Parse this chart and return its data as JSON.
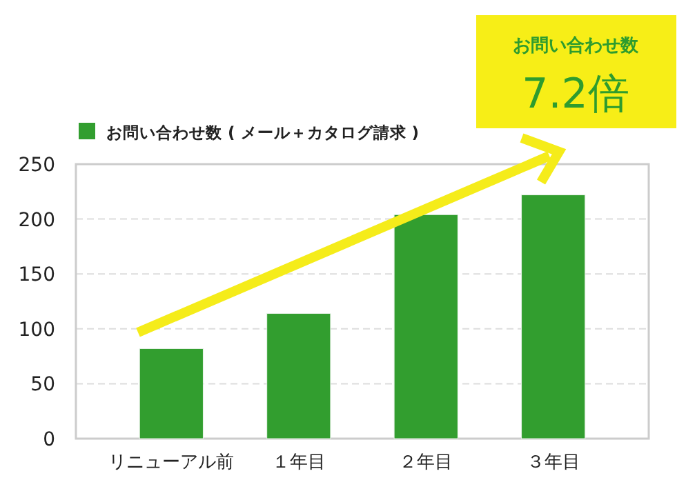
{
  "chart_data": {
    "type": "bar",
    "categories": [
      "リニューアル前",
      "１年目",
      "２年目",
      "３年目"
    ],
    "series": [
      {
        "name": "お問い合わせ数 ( メール＋カタログ請求 )",
        "color": "#329e2f",
        "values": [
          82,
          114,
          204,
          222
        ]
      }
    ],
    "ylim": [
      0,
      250
    ],
    "yticks": [
      0,
      50,
      100,
      150,
      200,
      250
    ],
    "grid": "y",
    "legend": "top left",
    "annotations": [
      "お問い合わせ数",
      "7.2倍"
    ]
  }
}
